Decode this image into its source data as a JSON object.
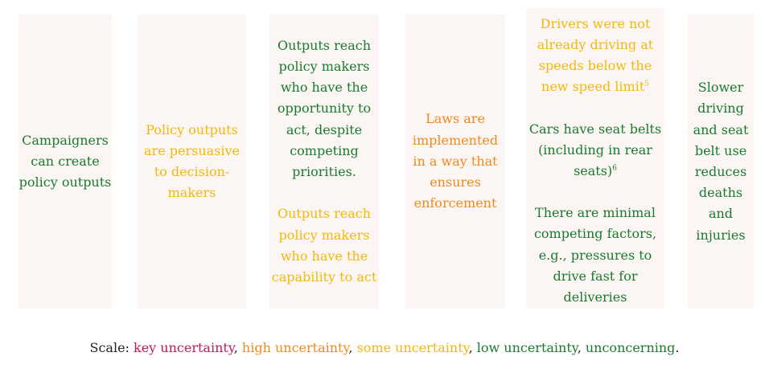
{
  "columns": [
    {
      "text": "Campaigners can create policy outputs"
    },
    {
      "text": "Policy outputs are persuasive to decision-makers"
    },
    {
      "a": "Outputs reach policy makers who have the opportunity to act, despite competing priorities.",
      "b": "Outputs reach policy makers who have the capability to act"
    },
    {
      "text": "Laws are implemented in a way that ensures enforcement"
    },
    {
      "a": "Drivers were not already driving at speeds below the new speed limit",
      "a_note": "5",
      "b": "Cars have seat belts (including in rear seats)",
      "b_note": "6",
      "c": "There are minimal competing factors, e.g., pressures to drive fast for deliveries"
    },
    {
      "text": "Slower driving and seat belt use reduces deaths and injuries"
    }
  ],
  "scale": {
    "prefix": "Scale: ",
    "key": "key uncertainty",
    "sep1": ", ",
    "high": "high uncertainty",
    "sep2": ", ",
    "some": "some uncertainty",
    "sep3": ", ",
    "low": "low uncertainty",
    "sep4": ", ",
    "unconcerning": "unconcerning",
    "end": "."
  },
  "colors": {
    "low": "#1a7a2e",
    "some": "#f0b90b",
    "high": "#ee8a1e",
    "key": "#c2185b",
    "panel_background": "#fbf6f4"
  }
}
